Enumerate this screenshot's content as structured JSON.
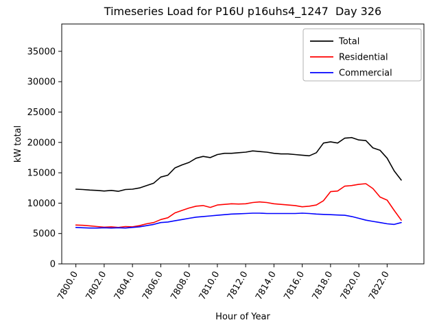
{
  "chart_data": {
    "type": "line",
    "title": "Timeseries Load for P16U p16uhs4_1247  Day 326",
    "xlabel": "Hour of Year",
    "ylabel": "kW total",
    "xlim": [
      7799.0,
      7824.6
    ],
    "ylim": [
      0,
      39500
    ],
    "grid": false,
    "xticks": [
      7800,
      7802,
      7804,
      7806,
      7808,
      7810,
      7812,
      7814,
      7816,
      7818,
      7820,
      7822
    ],
    "xtick_labels": [
      "7800.0",
      "7802.0",
      "7804.0",
      "7806.0",
      "7808.0",
      "7810.0",
      "7812.0",
      "7814.0",
      "7816.0",
      "7818.0",
      "7820.0",
      "7822.0"
    ],
    "yticks": [
      0,
      5000,
      10000,
      15000,
      20000,
      25000,
      30000,
      35000
    ],
    "ytick_labels": [
      "0",
      "5000",
      "10000",
      "15000",
      "20000",
      "25000",
      "30000",
      "35000"
    ],
    "legend": {
      "position": "upper right",
      "entries": [
        "Total",
        "Residential",
        "Commercial"
      ]
    },
    "x": [
      7800.0,
      7800.5,
      7801.0,
      7801.5,
      7802.0,
      7802.5,
      7803.0,
      7803.5,
      7804.0,
      7804.5,
      7805.0,
      7805.5,
      7806.0,
      7806.5,
      7807.0,
      7807.5,
      7808.0,
      7808.5,
      7809.0,
      7809.5,
      7810.0,
      7810.5,
      7811.0,
      7811.5,
      7812.0,
      7812.5,
      7813.0,
      7813.5,
      7814.0,
      7814.5,
      7815.0,
      7815.5,
      7816.0,
      7816.5,
      7817.0,
      7817.5,
      7818.0,
      7818.5,
      7819.0,
      7819.5,
      7820.0,
      7820.5,
      7821.0,
      7821.5,
      7822.0,
      7822.5,
      7823.0
    ],
    "series": [
      {
        "name": "Total",
        "color": "#000000",
        "values": [
          12300,
          12250,
          12150,
          12100,
          12000,
          12100,
          11950,
          12250,
          12300,
          12500,
          12900,
          13300,
          14300,
          14600,
          15800,
          16300,
          16700,
          17400,
          17700,
          17500,
          18000,
          18200,
          18200,
          18300,
          18400,
          18600,
          18500,
          18400,
          18200,
          18100,
          18100,
          18000,
          17900,
          17800,
          18300,
          19900,
          20100,
          19900,
          20700,
          20800,
          20400,
          20300,
          19100,
          18700,
          17400,
          15300,
          13800
        ]
      },
      {
        "name": "Residential",
        "color": "#ff0000",
        "values": [
          6400,
          6350,
          6250,
          6150,
          6050,
          6100,
          6000,
          6150,
          6100,
          6300,
          6600,
          6800,
          7300,
          7600,
          8400,
          8800,
          9200,
          9500,
          9600,
          9300,
          9700,
          9800,
          9900,
          9850,
          9900,
          10100,
          10200,
          10100,
          9900,
          9800,
          9700,
          9600,
          9400,
          9500,
          9700,
          10400,
          11900,
          12000,
          12800,
          12900,
          13100,
          13200,
          12400,
          11000,
          10500,
          8800,
          7200
        ]
      },
      {
        "name": "Commercial",
        "color": "#0000ff",
        "values": [
          6000,
          5950,
          5900,
          5900,
          5950,
          5900,
          5950,
          5900,
          6000,
          6100,
          6300,
          6500,
          6800,
          6900,
          7100,
          7300,
          7500,
          7700,
          7800,
          7900,
          8000,
          8100,
          8200,
          8250,
          8300,
          8350,
          8350,
          8300,
          8300,
          8300,
          8300,
          8300,
          8350,
          8300,
          8200,
          8150,
          8100,
          8050,
          8000,
          7800,
          7500,
          7200,
          7000,
          6800,
          6600,
          6500,
          6800
        ]
      }
    ]
  }
}
